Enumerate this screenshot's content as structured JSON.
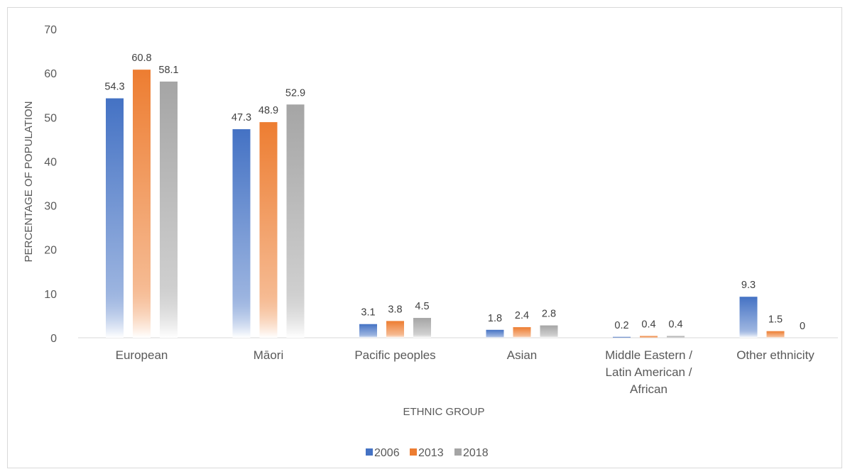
{
  "chart_data": {
    "type": "bar",
    "title": "",
    "xlabel": "ETHNIC GROUP",
    "ylabel": "PERCENTAGE OF POPULATION",
    "ylim": [
      0,
      70
    ],
    "yticks": [
      0,
      10,
      20,
      30,
      40,
      50,
      60,
      70
    ],
    "grid": false,
    "legend": "bottom",
    "categories": [
      [
        "European"
      ],
      [
        "Māori"
      ],
      [
        "Pacific peoples"
      ],
      [
        "Asian"
      ],
      [
        "Middle Eastern /",
        "Latin American /",
        "African"
      ],
      [
        "Other ethnicity"
      ]
    ],
    "series": [
      {
        "name": "2006",
        "color": "#4472c4",
        "values": [
          54.3,
          47.3,
          3.1,
          1.8,
          0.2,
          9.3
        ]
      },
      {
        "name": "2013",
        "color": "#ed7d31",
        "values": [
          60.8,
          48.9,
          3.8,
          2.4,
          0.4,
          1.5
        ]
      },
      {
        "name": "2018",
        "color": "#a5a5a5",
        "values": [
          58.1,
          52.9,
          4.5,
          2.8,
          0.4,
          0
        ]
      }
    ]
  }
}
